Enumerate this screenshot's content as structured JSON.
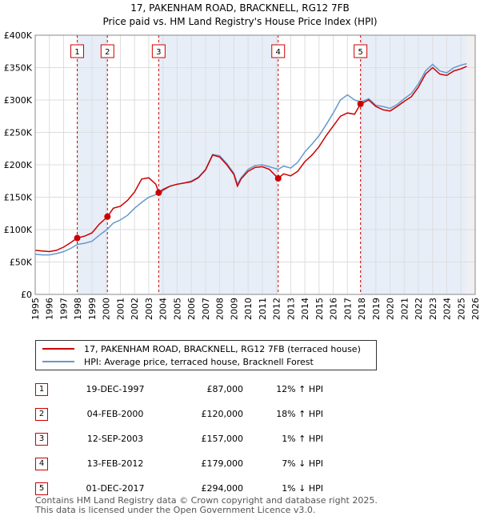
{
  "chart_data": {
    "type": "line",
    "title": "17, PAKENHAM ROAD, BRACKNELL, RG12 7FB",
    "subtitle": "Price paid vs. HM Land Registry's House Price Index (HPI)",
    "ylim": [
      0,
      400000
    ],
    "xlim": [
      1995,
      2026
    ],
    "y_ticks": [
      {
        "value": 0,
        "label": "£0"
      },
      {
        "value": 50000,
        "label": "£50K"
      },
      {
        "value": 100000,
        "label": "£100K"
      },
      {
        "value": 150000,
        "label": "£150K"
      },
      {
        "value": 200000,
        "label": "£200K"
      },
      {
        "value": 250000,
        "label": "£250K"
      },
      {
        "value": 300000,
        "label": "£300K"
      },
      {
        "value": 350000,
        "label": "£350K"
      },
      {
        "value": 400000,
        "label": "£400K"
      }
    ],
    "x_ticks": [
      "1995",
      "1996",
      "1997",
      "1998",
      "1999",
      "2000",
      "2001",
      "2002",
      "2003",
      "2004",
      "2005",
      "2006",
      "2007",
      "2008",
      "2009",
      "2010",
      "2011",
      "2012",
      "2013",
      "2014",
      "2015",
      "2016",
      "2017",
      "2018",
      "2019",
      "2020",
      "2021",
      "2022",
      "2023",
      "2024",
      "2025",
      "2026"
    ],
    "series": [
      {
        "name": "17, PAKENHAM ROAD, BRACKNELL, RG12 7FB (terraced house)",
        "color": "#cc0000",
        "points": [
          [
            1995.0,
            68000
          ],
          [
            1995.5,
            67000
          ],
          [
            1996.0,
            66000
          ],
          [
            1996.5,
            68000
          ],
          [
            1997.0,
            73000
          ],
          [
            1997.5,
            80000
          ],
          [
            1997.96,
            87000
          ],
          [
            1998.5,
            90000
          ],
          [
            1999.0,
            95000
          ],
          [
            1999.5,
            108000
          ],
          [
            2000.1,
            120000
          ],
          [
            2000.5,
            133000
          ],
          [
            2001.0,
            136000
          ],
          [
            2001.5,
            145000
          ],
          [
            2002.0,
            158000
          ],
          [
            2002.5,
            178000
          ],
          [
            2003.0,
            180000
          ],
          [
            2003.5,
            170000
          ],
          [
            2003.7,
            157000
          ],
          [
            2004.0,
            162000
          ],
          [
            2004.5,
            167000
          ],
          [
            2005.0,
            170000
          ],
          [
            2005.5,
            172000
          ],
          [
            2006.0,
            174000
          ],
          [
            2006.5,
            180000
          ],
          [
            2007.0,
            192000
          ],
          [
            2007.5,
            215000
          ],
          [
            2008.0,
            212000
          ],
          [
            2008.5,
            200000
          ],
          [
            2009.0,
            185000
          ],
          [
            2009.25,
            167000
          ],
          [
            2009.5,
            178000
          ],
          [
            2010.0,
            190000
          ],
          [
            2010.5,
            196000
          ],
          [
            2011.0,
            197000
          ],
          [
            2011.5,
            193000
          ],
          [
            2012.12,
            179000
          ],
          [
            2012.5,
            186000
          ],
          [
            2013.0,
            183000
          ],
          [
            2013.5,
            190000
          ],
          [
            2014.0,
            205000
          ],
          [
            2014.5,
            215000
          ],
          [
            2015.0,
            228000
          ],
          [
            2015.5,
            245000
          ],
          [
            2016.0,
            260000
          ],
          [
            2016.5,
            275000
          ],
          [
            2017.0,
            280000
          ],
          [
            2017.5,
            278000
          ],
          [
            2017.92,
            294000
          ],
          [
            2018.5,
            300000
          ],
          [
            2019.0,
            290000
          ],
          [
            2019.5,
            285000
          ],
          [
            2020.0,
            283000
          ],
          [
            2020.5,
            290000
          ],
          [
            2021.0,
            298000
          ],
          [
            2021.5,
            305000
          ],
          [
            2022.0,
            320000
          ],
          [
            2022.5,
            340000
          ],
          [
            2023.0,
            350000
          ],
          [
            2023.5,
            340000
          ],
          [
            2024.0,
            338000
          ],
          [
            2024.5,
            345000
          ],
          [
            2025.0,
            348000
          ],
          [
            2025.4,
            352000
          ]
        ]
      },
      {
        "name": "HPI: Average price, terraced house, Bracknell Forest",
        "color": "#6699cc",
        "points": [
          [
            1995.0,
            62000
          ],
          [
            1995.5,
            61000
          ],
          [
            1996.0,
            61000
          ],
          [
            1996.5,
            63000
          ],
          [
            1997.0,
            66000
          ],
          [
            1997.5,
            71000
          ],
          [
            1997.96,
            77000
          ],
          [
            1998.5,
            79000
          ],
          [
            1999.0,
            82000
          ],
          [
            1999.5,
            91000
          ],
          [
            2000.1,
            101000
          ],
          [
            2000.5,
            110000
          ],
          [
            2001.0,
            115000
          ],
          [
            2001.5,
            122000
          ],
          [
            2002.0,
            133000
          ],
          [
            2002.5,
            142000
          ],
          [
            2003.0,
            150000
          ],
          [
            2003.5,
            154000
          ],
          [
            2003.7,
            155000
          ],
          [
            2004.0,
            160000
          ],
          [
            2004.5,
            167000
          ],
          [
            2005.0,
            170000
          ],
          [
            2005.5,
            172000
          ],
          [
            2006.0,
            175000
          ],
          [
            2006.5,
            181000
          ],
          [
            2007.0,
            193000
          ],
          [
            2007.5,
            216000
          ],
          [
            2008.0,
            214000
          ],
          [
            2008.5,
            202000
          ],
          [
            2009.0,
            187000
          ],
          [
            2009.25,
            170000
          ],
          [
            2009.5,
            180000
          ],
          [
            2010.0,
            193000
          ],
          [
            2010.5,
            199000
          ],
          [
            2011.0,
            200000
          ],
          [
            2011.5,
            197000
          ],
          [
            2012.12,
            193000
          ],
          [
            2012.5,
            198000
          ],
          [
            2013.0,
            195000
          ],
          [
            2013.5,
            204000
          ],
          [
            2014.0,
            220000
          ],
          [
            2014.5,
            232000
          ],
          [
            2015.0,
            245000
          ],
          [
            2015.5,
            262000
          ],
          [
            2016.0,
            280000
          ],
          [
            2016.5,
            300000
          ],
          [
            2017.0,
            308000
          ],
          [
            2017.5,
            300000
          ],
          [
            2017.92,
            297000
          ],
          [
            2018.5,
            302000
          ],
          [
            2019.0,
            292000
          ],
          [
            2019.5,
            290000
          ],
          [
            2020.0,
            287000
          ],
          [
            2020.5,
            293000
          ],
          [
            2021.0,
            302000
          ],
          [
            2021.5,
            310000
          ],
          [
            2022.0,
            325000
          ],
          [
            2022.5,
            345000
          ],
          [
            2023.0,
            355000
          ],
          [
            2023.5,
            345000
          ],
          [
            2024.0,
            342000
          ],
          [
            2024.5,
            350000
          ],
          [
            2025.0,
            354000
          ],
          [
            2025.4,
            356000
          ]
        ]
      }
    ],
    "sales": [
      {
        "num": "1",
        "x": 1997.96,
        "value": 87000
      },
      {
        "num": "2",
        "x": 2000.09,
        "value": 120000
      },
      {
        "num": "3",
        "x": 2003.7,
        "value": 157000
      },
      {
        "num": "4",
        "x": 2012.12,
        "value": 179000
      },
      {
        "num": "5",
        "x": 2017.92,
        "value": 294000
      }
    ],
    "shaded_ranges": [
      [
        1997.96,
        2000.09
      ],
      [
        2003.7,
        2012.12
      ],
      [
        2017.92,
        2025.4
      ]
    ],
    "forecast_start": 2025.4
  },
  "legend": {
    "property": "17, PAKENHAM ROAD, BRACKNELL, RG12 7FB (terraced house)",
    "hpi": "HPI: Average price, terraced house, Bracknell Forest"
  },
  "transactions": [
    {
      "num": "1",
      "date": "19-DEC-1997",
      "price": "£87,000",
      "hpi": "12% ↑ HPI"
    },
    {
      "num": "2",
      "date": "04-FEB-2000",
      "price": "£120,000",
      "hpi": "18% ↑ HPI"
    },
    {
      "num": "3",
      "date": "12-SEP-2003",
      "price": "£157,000",
      "hpi": "1% ↑ HPI"
    },
    {
      "num": "4",
      "date": "13-FEB-2012",
      "price": "£179,000",
      "hpi": "7% ↓ HPI"
    },
    {
      "num": "5",
      "date": "01-DEC-2017",
      "price": "£294,000",
      "hpi": "1% ↓ HPI"
    }
  ],
  "footer": {
    "line1": "Contains HM Land Registry data © Crown copyright and database right 2025.",
    "line2": "This data is licensed under the Open Government Licence v3.0."
  }
}
